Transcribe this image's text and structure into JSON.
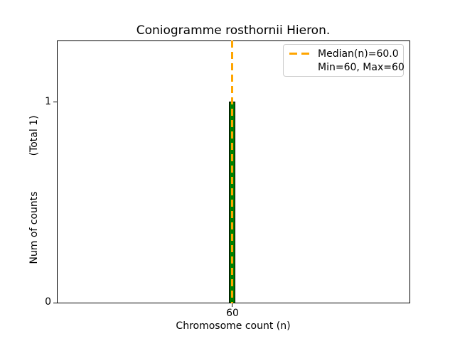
{
  "chart_data": {
    "type": "bar",
    "title": "Coniogramme rosthornii Hieron.",
    "xlabel": "Chromosome count (n)",
    "ylabel": "Num of counts",
    "ylabel_total": "(Total 1)",
    "categories": [
      60
    ],
    "values": [
      1
    ],
    "xticks": [
      "60"
    ],
    "yticks": [
      "1",
      "0"
    ],
    "ylim": [
      0,
      1.3
    ],
    "grid": false,
    "median": 60.0,
    "min": 60,
    "max": 60,
    "legend": {
      "position": "upper right",
      "entries": [
        {
          "label": "Median(n)=60.0",
          "marker": "orange-dashed-line"
        },
        {
          "label": "Min=60, Max=60",
          "marker": "none"
        }
      ]
    },
    "colors": {
      "bar_fill": "#008000",
      "bar_edge": "#000000",
      "median_line": "#FFA500",
      "axis": "#000000",
      "legend_border": "#cccccc",
      "text": "#000000"
    }
  }
}
